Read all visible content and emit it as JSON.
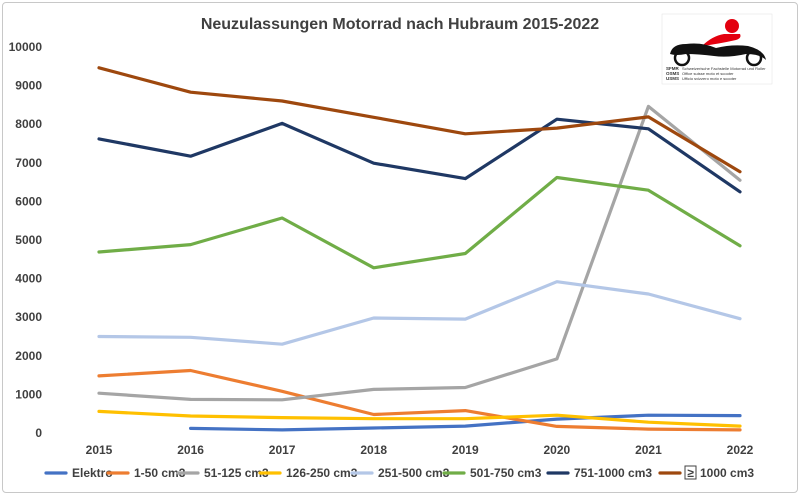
{
  "chart_data": {
    "type": "line",
    "title": "Neuzulassungen Motorrad nach Hubraum 2015-2022",
    "x": [
      "2015",
      "2016",
      "2017",
      "2018",
      "2019",
      "2020",
      "2021",
      "2022"
    ],
    "ylim": [
      0,
      10000
    ],
    "yticks": [
      0,
      1000,
      2000,
      3000,
      4000,
      5000,
      6000,
      7000,
      8000,
      9000,
      10000
    ],
    "grid": false,
    "legend_position": "bottom",
    "series": [
      {
        "name": "Elektro",
        "color": "#4472c4",
        "values": [
          null,
          120,
          80,
          130,
          180,
          360,
          460,
          450
        ]
      },
      {
        "name": "1-50 cm3",
        "color": "#ed7d31",
        "values": [
          1480,
          1620,
          1080,
          480,
          580,
          170,
          100,
          80
        ]
      },
      {
        "name": "51-125 cm3",
        "color": "#a5a5a5",
        "values": [
          1030,
          870,
          860,
          1130,
          1180,
          1920,
          8460,
          6550
        ]
      },
      {
        "name": "126-250 cm3",
        "color": "#ffc000",
        "values": [
          560,
          440,
          400,
          370,
          370,
          460,
          280,
          180
        ]
      },
      {
        "name": "251-500 cm3",
        "color": "#b4c7e7",
        "values": [
          2500,
          2480,
          2300,
          2980,
          2950,
          3920,
          3600,
          2960
        ]
      },
      {
        "name": "501-750 cm3",
        "color": "#70ad47",
        "values": [
          4690,
          4880,
          5570,
          4280,
          4650,
          6620,
          6290,
          4850
        ]
      },
      {
        "name": "751-1000 cm3",
        "color": "#1f3864",
        "values": [
          7620,
          7170,
          8020,
          6990,
          6590,
          8130,
          7880,
          6250
        ]
      },
      {
        "name": "1000 cm3",
        "legend_symbol": "≥",
        "color": "#9e480e",
        "values": [
          9460,
          8830,
          8600,
          8180,
          7750,
          7900,
          8190,
          6770
        ]
      }
    ]
  },
  "logo": {
    "abbr1": "SFMR",
    "text1": "Schweizerische Fachstelle Motorrad und Roller",
    "abbr2": "OSMS",
    "text2": "Office suisse moto et scooter",
    "abbr3": "USMS",
    "text3": "Ufficio svizzero moto e scooter"
  }
}
